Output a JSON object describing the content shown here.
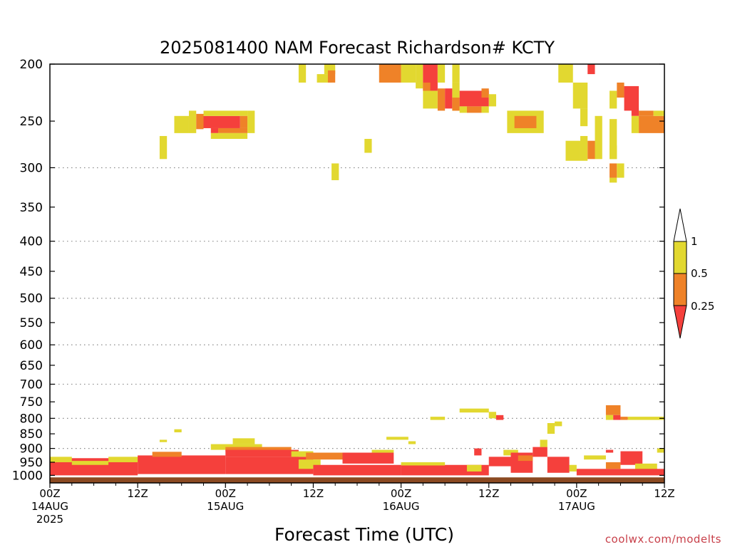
{
  "chart_data": {
    "type": "heatmap",
    "title": "2025081400 NAM Forecast Richardson# KCTY",
    "xlabel": "Forecast Time (UTC)",
    "credit": "coolwx.com/modelts",
    "x_range": [
      0,
      84
    ],
    "y_range": [
      1030,
      200
    ],
    "y_scale": "log",
    "y_ticks": [
      200,
      250,
      300,
      350,
      400,
      450,
      500,
      550,
      600,
      650,
      700,
      750,
      800,
      850,
      900,
      950,
      1000
    ],
    "grid_levels": [
      300,
      400,
      500,
      600,
      700,
      800,
      900
    ],
    "x_ticks": [
      {
        "hour": 0,
        "line1": "00Z",
        "line2": "14AUG",
        "line3": "2025"
      },
      {
        "hour": 12,
        "line1": "12Z",
        "line2": "",
        "line3": ""
      },
      {
        "hour": 24,
        "line1": "00Z",
        "line2": "15AUG",
        "line3": ""
      },
      {
        "hour": 36,
        "line1": "12Z",
        "line2": "",
        "line3": ""
      },
      {
        "hour": 48,
        "line1": "00Z",
        "line2": "16AUG",
        "line3": ""
      },
      {
        "hour": 60,
        "line1": "12Z",
        "line2": "",
        "line3": ""
      },
      {
        "hour": 72,
        "line1": "00Z",
        "line2": "17AUG",
        "line3": ""
      },
      {
        "hour": 84,
        "line1": "12Z",
        "line2": "",
        "line3": ""
      }
    ],
    "colorbar": {
      "levels": [
        "1",
        "0.5",
        "0.25"
      ],
      "bins": [
        {
          "label": "<0.25",
          "color": "#f5403c"
        },
        {
          "label": "0.25-0.5",
          "color": "#ef8228"
        },
        {
          "label": "0.5-1",
          "color": "#e2d830"
        },
        {
          "label": ">1",
          "color": "#ffffff"
        }
      ]
    },
    "ground_color": "#8b4a22",
    "colors": {
      "low": "#f5403c",
      "mid": "#ef8228",
      "high": "#e2d830"
    },
    "cells": [
      {
        "t0": 34,
        "t1": 35,
        "p0": 200,
        "p1": 215,
        "cls": "high"
      },
      {
        "t0": 36.5,
        "t1": 38.5,
        "p0": 208,
        "p1": 215,
        "cls": "high"
      },
      {
        "t0": 37.5,
        "t1": 39,
        "p0": 200,
        "p1": 208,
        "cls": "high"
      },
      {
        "t0": 38,
        "t1": 39,
        "p0": 205,
        "p1": 215,
        "cls": "mid"
      },
      {
        "t0": 45,
        "t1": 48,
        "p0": 200,
        "p1": 215,
        "cls": "mid"
      },
      {
        "t0": 48,
        "t1": 50,
        "p0": 200,
        "p1": 215,
        "cls": "high"
      },
      {
        "t0": 50,
        "t1": 51,
        "p0": 200,
        "p1": 220,
        "cls": "high"
      },
      {
        "t0": 51,
        "t1": 53,
        "p0": 200,
        "p1": 222,
        "cls": "low"
      },
      {
        "t0": 51,
        "t1": 52,
        "p0": 215,
        "p1": 222,
        "cls": "mid"
      },
      {
        "t0": 53,
        "t1": 54,
        "p0": 200,
        "p1": 215,
        "cls": "high"
      },
      {
        "t0": 55,
        "t1": 56,
        "p0": 200,
        "p1": 215,
        "cls": "high"
      },
      {
        "t0": 51,
        "t1": 53,
        "p0": 222,
        "p1": 238,
        "cls": "high"
      },
      {
        "t0": 53,
        "t1": 54,
        "p0": 220,
        "p1": 240,
        "cls": "mid"
      },
      {
        "t0": 54,
        "t1": 55,
        "p0": 220,
        "p1": 238,
        "cls": "low"
      },
      {
        "t0": 55,
        "t1": 56,
        "p0": 215,
        "p1": 240,
        "cls": "high"
      },
      {
        "t0": 55,
        "t1": 56,
        "p0": 228,
        "p1": 240,
        "cls": "mid"
      },
      {
        "t0": 56,
        "t1": 60,
        "p0": 222,
        "p1": 236,
        "cls": "low"
      },
      {
        "t0": 56,
        "t1": 57,
        "p0": 236,
        "p1": 242,
        "cls": "high"
      },
      {
        "t0": 57,
        "t1": 59,
        "p0": 236,
        "p1": 242,
        "cls": "mid"
      },
      {
        "t0": 59,
        "t1": 60,
        "p0": 236,
        "p1": 242,
        "cls": "high"
      },
      {
        "t0": 59,
        "t1": 60,
        "p0": 220,
        "p1": 228,
        "cls": "mid"
      },
      {
        "t0": 60,
        "t1": 61,
        "p0": 225,
        "p1": 236,
        "cls": "high"
      },
      {
        "t0": 17,
        "t1": 19,
        "p0": 245,
        "p1": 262,
        "cls": "high"
      },
      {
        "t0": 19,
        "t1": 20,
        "p0": 240,
        "p1": 262,
        "cls": "high"
      },
      {
        "t0": 20,
        "t1": 21,
        "p0": 243,
        "p1": 258,
        "cls": "mid"
      },
      {
        "t0": 21,
        "t1": 26,
        "p0": 245,
        "p1": 257,
        "cls": "low"
      },
      {
        "t0": 22,
        "t1": 23,
        "p0": 257,
        "p1": 262,
        "cls": "low"
      },
      {
        "t0": 21,
        "t1": 27,
        "p0": 240,
        "p1": 245,
        "cls": "high"
      },
      {
        "t0": 23,
        "t1": 27,
        "p0": 257,
        "p1": 262,
        "cls": "mid"
      },
      {
        "t0": 26,
        "t1": 27,
        "p0": 245,
        "p1": 257,
        "cls": "mid"
      },
      {
        "t0": 27,
        "t1": 28,
        "p0": 240,
        "p1": 262,
        "cls": "high"
      },
      {
        "t0": 22,
        "t1": 27,
        "p0": 262,
        "p1": 268,
        "cls": "high"
      },
      {
        "t0": 15,
        "t1": 16,
        "p0": 265,
        "p1": 290,
        "cls": "high"
      },
      {
        "t0": 43,
        "t1": 44,
        "p0": 268,
        "p1": 283,
        "cls": "high"
      },
      {
        "t0": 38.5,
        "t1": 39.5,
        "p0": 295,
        "p1": 315,
        "cls": "high"
      },
      {
        "t0": 62.5,
        "t1": 67.5,
        "p0": 240,
        "p1": 262,
        "cls": "high"
      },
      {
        "t0": 63.5,
        "t1": 66.5,
        "p0": 245,
        "p1": 257,
        "cls": "mid"
      },
      {
        "t0": 69.5,
        "t1": 71.5,
        "p0": 200,
        "p1": 215,
        "cls": "high"
      },
      {
        "t0": 71.5,
        "t1": 73.5,
        "p0": 215,
        "p1": 238,
        "cls": "high"
      },
      {
        "t0": 73.5,
        "t1": 74.5,
        "p0": 200,
        "p1": 208,
        "cls": "low"
      },
      {
        "t0": 72.5,
        "t1": 73.5,
        "p0": 238,
        "p1": 255,
        "cls": "high"
      },
      {
        "t0": 74.5,
        "t1": 75.5,
        "p0": 245,
        "p1": 290,
        "cls": "high"
      },
      {
        "t0": 70.5,
        "t1": 72.5,
        "p0": 270,
        "p1": 292,
        "cls": "high"
      },
      {
        "t0": 72.5,
        "t1": 73.5,
        "p0": 265,
        "p1": 292,
        "cls": "high"
      },
      {
        "t0": 73.5,
        "t1": 74.5,
        "p0": 270,
        "p1": 290,
        "cls": "mid"
      },
      {
        "t0": 76.5,
        "t1": 77.5,
        "p0": 222,
        "p1": 238,
        "cls": "high"
      },
      {
        "t0": 77.5,
        "t1": 78.5,
        "p0": 215,
        "p1": 228,
        "cls": "mid"
      },
      {
        "t0": 78.5,
        "t1": 80.5,
        "p0": 218,
        "p1": 240,
        "cls": "low"
      },
      {
        "t0": 79.5,
        "t1": 80.5,
        "p0": 238,
        "p1": 245,
        "cls": "low"
      },
      {
        "t0": 80.5,
        "t1": 82.5,
        "p0": 240,
        "p1": 245,
        "cls": "mid"
      },
      {
        "t0": 79.5,
        "t1": 80.5,
        "p0": 245,
        "p1": 262,
        "cls": "high"
      },
      {
        "t0": 80.5,
        "t1": 84,
        "p0": 245,
        "p1": 262,
        "cls": "mid"
      },
      {
        "t0": 82.5,
        "t1": 84,
        "p0": 240,
        "p1": 245,
        "cls": "high"
      },
      {
        "t0": 76.5,
        "t1": 77.5,
        "p0": 248,
        "p1": 290,
        "cls": "high"
      },
      {
        "t0": 76.5,
        "t1": 77.5,
        "p0": 275,
        "p1": 290,
        "cls": "high"
      },
      {
        "t0": 76.5,
        "t1": 77.5,
        "p0": 295,
        "p1": 312,
        "cls": "mid"
      },
      {
        "t0": 76.5,
        "t1": 77.5,
        "p0": 312,
        "p1": 318,
        "cls": "high"
      },
      {
        "t0": 77.5,
        "t1": 78.5,
        "p0": 295,
        "p1": 312,
        "cls": "high"
      },
      {
        "t0": 0,
        "t1": 12,
        "p0": 935,
        "p1": 1000,
        "cls": "low"
      },
      {
        "t0": 0,
        "t1": 3,
        "p0": 930,
        "p1": 950,
        "cls": "high"
      },
      {
        "t0": 3,
        "t1": 8,
        "p0": 945,
        "p1": 960,
        "cls": "high"
      },
      {
        "t0": 8,
        "t1": 14,
        "p0": 930,
        "p1": 950,
        "cls": "high"
      },
      {
        "t0": 12,
        "t1": 24,
        "p0": 925,
        "p1": 995,
        "cls": "low"
      },
      {
        "t0": 14,
        "t1": 18,
        "p0": 912,
        "p1": 930,
        "cls": "mid"
      },
      {
        "t0": 15,
        "t1": 16,
        "p0": 870,
        "p1": 878,
        "cls": "high"
      },
      {
        "t0": 17,
        "t1": 18,
        "p0": 835,
        "p1": 845,
        "cls": "high"
      },
      {
        "t0": 22,
        "t1": 29,
        "p0": 885,
        "p1": 905,
        "cls": "high"
      },
      {
        "t0": 24,
        "t1": 33,
        "p0": 895,
        "p1": 910,
        "cls": "mid"
      },
      {
        "t0": 24,
        "t1": 34,
        "p0": 905,
        "p1": 930,
        "cls": "low"
      },
      {
        "t0": 24,
        "t1": 36,
        "p0": 930,
        "p1": 995,
        "cls": "low"
      },
      {
        "t0": 25,
        "t1": 28,
        "p0": 865,
        "p1": 885,
        "cls": "high"
      },
      {
        "t0": 33,
        "t1": 36,
        "p0": 910,
        "p1": 930,
        "cls": "high"
      },
      {
        "t0": 35,
        "t1": 41,
        "p0": 915,
        "p1": 940,
        "cls": "mid"
      },
      {
        "t0": 34,
        "t1": 37,
        "p0": 940,
        "p1": 975,
        "cls": "high"
      },
      {
        "t0": 36,
        "t1": 48,
        "p0": 960,
        "p1": 1000,
        "cls": "low"
      },
      {
        "t0": 40,
        "t1": 47,
        "p0": 915,
        "p1": 955,
        "cls": "low"
      },
      {
        "t0": 44,
        "t1": 47,
        "p0": 905,
        "p1": 915,
        "cls": "high"
      },
      {
        "t0": 46,
        "t1": 49,
        "p0": 860,
        "p1": 870,
        "cls": "high"
      },
      {
        "t0": 49,
        "t1": 50,
        "p0": 875,
        "p1": 885,
        "cls": "high"
      },
      {
        "t0": 48,
        "t1": 60,
        "p0": 960,
        "p1": 1000,
        "cls": "low"
      },
      {
        "t0": 48,
        "t1": 54,
        "p0": 950,
        "p1": 962,
        "cls": "high"
      },
      {
        "t0": 52,
        "t1": 54,
        "p0": 795,
        "p1": 805,
        "cls": "high"
      },
      {
        "t0": 56,
        "t1": 60,
        "p0": 770,
        "p1": 782,
        "cls": "high"
      },
      {
        "t0": 57,
        "t1": 59,
        "p0": 960,
        "p1": 985,
        "cls": "high"
      },
      {
        "t0": 58,
        "t1": 59,
        "p0": 900,
        "p1": 925,
        "cls": "low"
      },
      {
        "t0": 60,
        "t1": 63,
        "p0": 930,
        "p1": 965,
        "cls": "low"
      },
      {
        "t0": 60,
        "t1": 61,
        "p0": 780,
        "p1": 800,
        "cls": "high"
      },
      {
        "t0": 61,
        "t1": 62,
        "p0": 790,
        "p1": 805,
        "cls": "low"
      },
      {
        "t0": 62,
        "t1": 64,
        "p0": 905,
        "p1": 925,
        "cls": "high"
      },
      {
        "t0": 63,
        "t1": 66,
        "p0": 915,
        "p1": 990,
        "cls": "low"
      },
      {
        "t0": 64,
        "t1": 66,
        "p0": 925,
        "p1": 945,
        "cls": "mid"
      },
      {
        "t0": 66,
        "t1": 68,
        "p0": 895,
        "p1": 930,
        "cls": "low"
      },
      {
        "t0": 67,
        "t1": 68,
        "p0": 870,
        "p1": 895,
        "cls": "high"
      },
      {
        "t0": 68,
        "t1": 69,
        "p0": 815,
        "p1": 850,
        "cls": "high"
      },
      {
        "t0": 68,
        "t1": 71,
        "p0": 930,
        "p1": 990,
        "cls": "low"
      },
      {
        "t0": 69,
        "t1": 70,
        "p0": 810,
        "p1": 825,
        "cls": "high"
      },
      {
        "t0": 71,
        "t1": 72,
        "p0": 960,
        "p1": 985,
        "cls": "high"
      },
      {
        "t0": 73,
        "t1": 76,
        "p0": 925,
        "p1": 940,
        "cls": "high"
      },
      {
        "t0": 76,
        "t1": 77,
        "p0": 905,
        "p1": 915,
        "cls": "low"
      },
      {
        "t0": 76,
        "t1": 78,
        "p0": 760,
        "p1": 790,
        "cls": "mid"
      },
      {
        "t0": 76,
        "t1": 77,
        "p0": 790,
        "p1": 805,
        "cls": "high"
      },
      {
        "t0": 77,
        "t1": 78,
        "p0": 790,
        "p1": 805,
        "cls": "low"
      },
      {
        "t0": 78,
        "t1": 79,
        "p0": 795,
        "p1": 805,
        "cls": "mid"
      },
      {
        "t0": 79,
        "t1": 84,
        "p0": 795,
        "p1": 805,
        "cls": "high"
      },
      {
        "t0": 78,
        "t1": 81,
        "p0": 910,
        "p1": 960,
        "cls": "low"
      },
      {
        "t0": 80,
        "t1": 83,
        "p0": 955,
        "p1": 985,
        "cls": "high"
      },
      {
        "t0": 83,
        "t1": 84,
        "p0": 900,
        "p1": 915,
        "cls": "high"
      },
      {
        "t0": 72,
        "t1": 84,
        "p0": 975,
        "p1": 1000,
        "cls": "low"
      },
      {
        "t0": 76,
        "t1": 78,
        "p0": 950,
        "p1": 975,
        "cls": "mid"
      }
    ]
  }
}
